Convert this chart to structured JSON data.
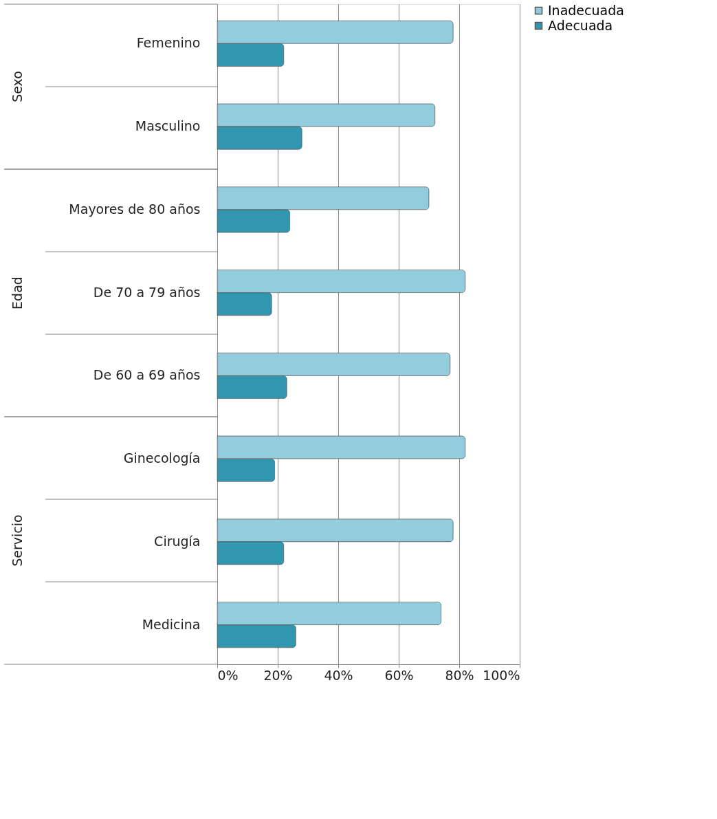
{
  "chart_data": {
    "type": "bar",
    "orientation": "horizontal",
    "categories": [
      "Femenino",
      "Masculino",
      "Mayores de 80 años",
      "De 70 a 79 años",
      "De 60 a 69 años",
      "Ginecología",
      "Cirugía",
      "Medicina"
    ],
    "series": [
      {
        "name": "Inadecuada",
        "color": "#93cddd",
        "values": [
          78,
          72,
          70,
          82,
          77,
          82,
          78,
          74
        ]
      },
      {
        "name": "Adecuada",
        "color": "#3196b0",
        "values": [
          22,
          28,
          24,
          18,
          23,
          19,
          22,
          26
        ]
      }
    ],
    "xlim": [
      0,
      100
    ],
    "xticks": [
      {
        "value": 0,
        "label": "0%"
      },
      {
        "value": 20,
        "label": "20%"
      },
      {
        "value": 40,
        "label": "40%"
      },
      {
        "value": 60,
        "label": "60%"
      },
      {
        "value": 80,
        "label": "80%"
      },
      {
        "value": 100,
        "label": "100%"
      }
    ],
    "annotations": [
      "Sexo",
      "Edad",
      "Servicio"
    ],
    "grid": "x",
    "legend": "right"
  }
}
